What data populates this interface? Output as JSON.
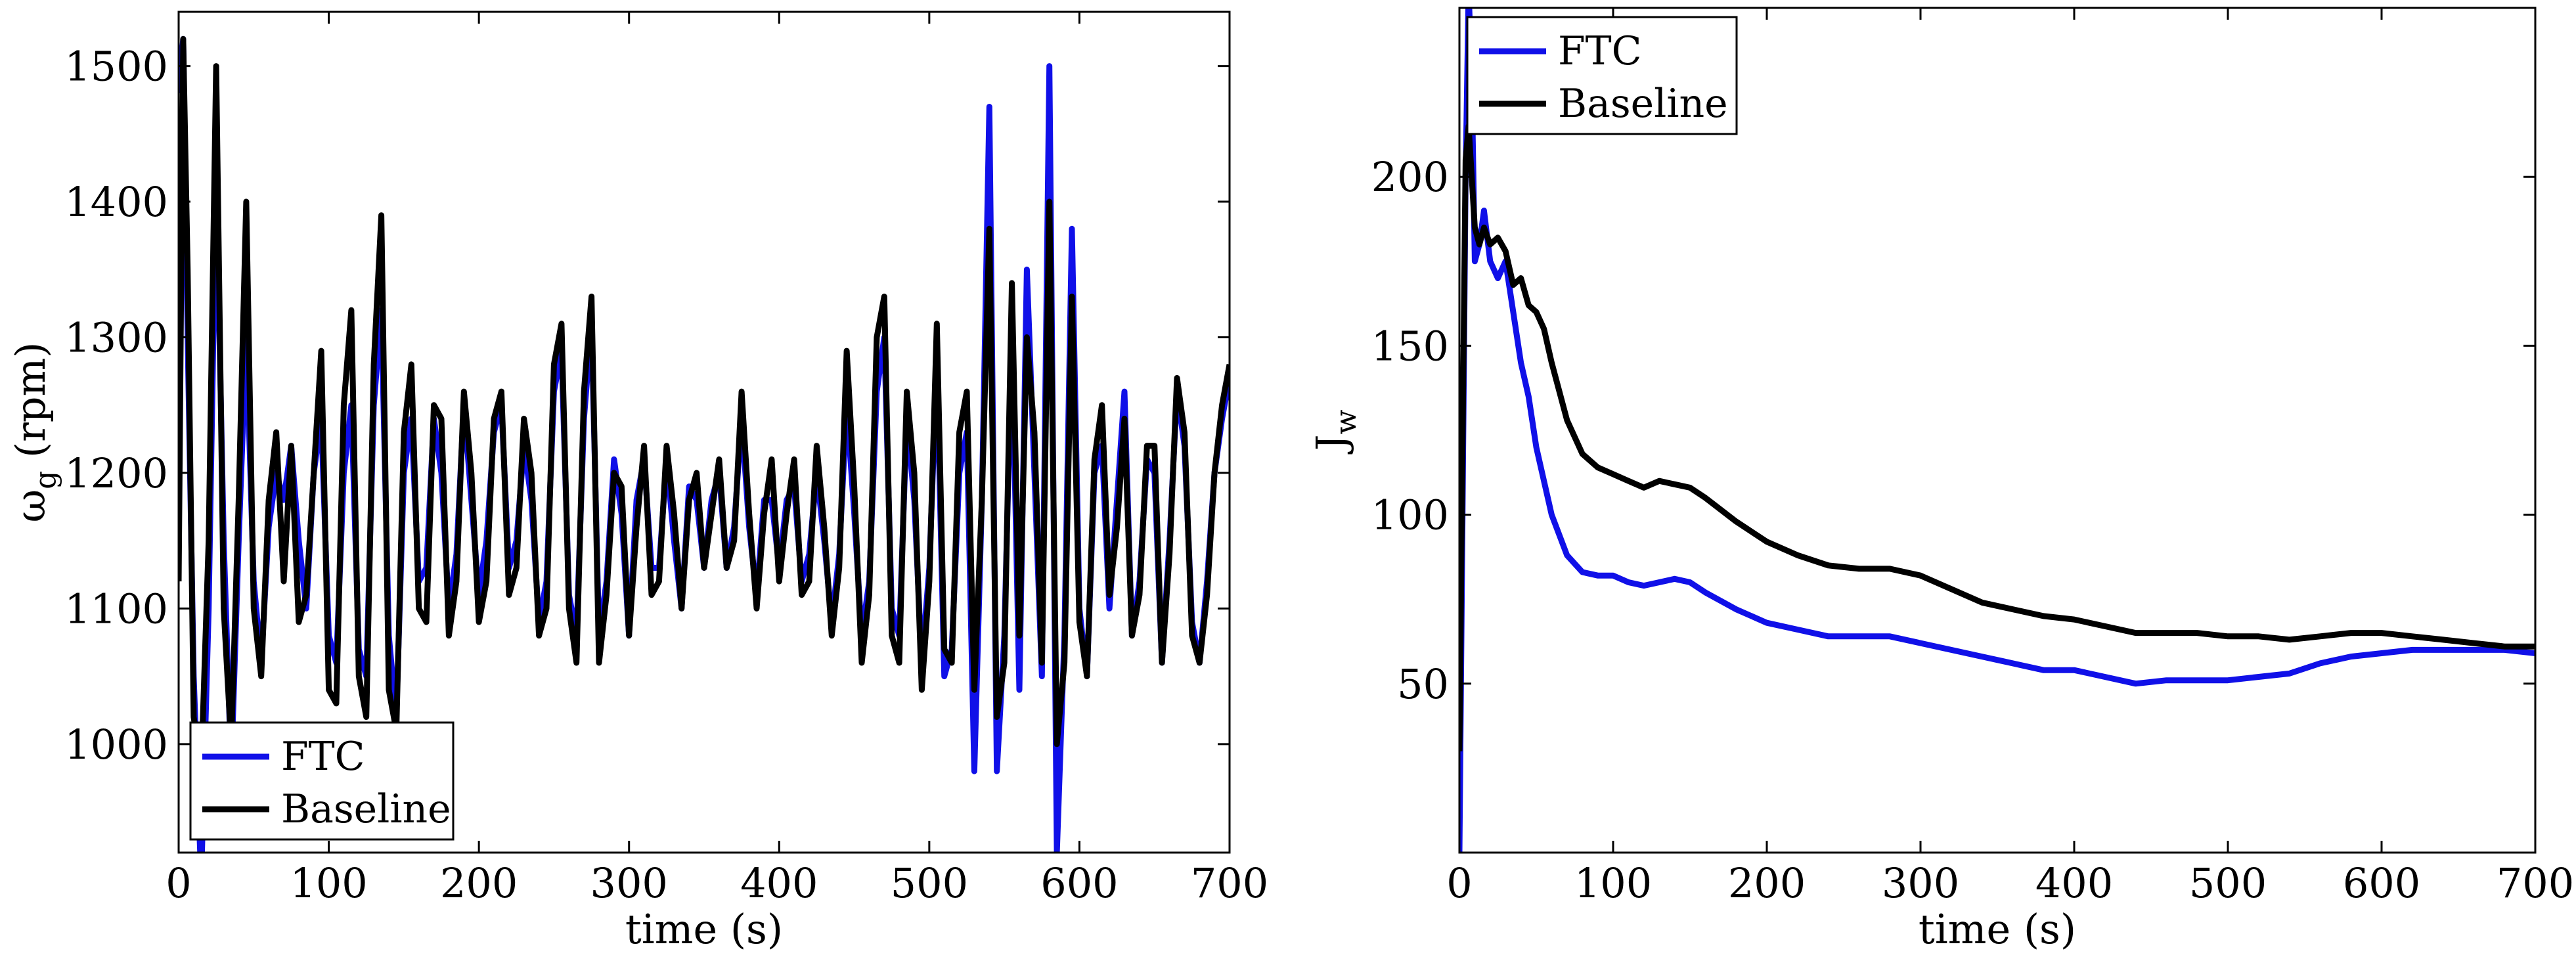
{
  "chart_data": [
    {
      "type": "line",
      "xlabel": "time (s)",
      "ylabel": "ω",
      "ylabel_sub": "g",
      "ylabel_unit": " (rpm)",
      "xlim": [
        0,
        700
      ],
      "ylim": [
        920,
        1540
      ],
      "xticks": [
        0,
        100,
        200,
        300,
        400,
        500,
        600,
        700
      ],
      "yticks": [
        1000,
        1100,
        1200,
        1300,
        1400,
        1500
      ],
      "legend_position": "bottom-left",
      "grid": false,
      "series": [
        {
          "name": "FTC",
          "color": "#1010e8",
          "x": [
            0,
            3,
            6,
            10,
            15,
            20,
            25,
            30,
            35,
            40,
            45,
            50,
            55,
            60,
            65,
            70,
            75,
            80,
            85,
            90,
            95,
            100,
            105,
            110,
            115,
            120,
            125,
            130,
            135,
            140,
            145,
            150,
            155,
            160,
            165,
            170,
            175,
            180,
            185,
            190,
            195,
            200,
            205,
            210,
            215,
            220,
            225,
            230,
            235,
            240,
            245,
            250,
            255,
            260,
            265,
            270,
            275,
            280,
            285,
            290,
            295,
            300,
            305,
            310,
            315,
            320,
            325,
            330,
            335,
            340,
            345,
            350,
            355,
            360,
            365,
            370,
            375,
            380,
            385,
            390,
            395,
            400,
            405,
            410,
            415,
            420,
            425,
            430,
            435,
            440,
            445,
            450,
            455,
            460,
            465,
            470,
            475,
            480,
            485,
            490,
            495,
            500,
            505,
            510,
            515,
            520,
            525,
            530,
            535,
            540,
            545,
            550,
            555,
            560,
            565,
            570,
            575,
            580,
            585,
            590,
            595,
            600,
            605,
            610,
            615,
            620,
            625,
            630,
            635,
            640,
            645,
            650,
            655,
            660,
            665,
            670,
            675,
            680,
            685,
            690,
            695,
            700
          ],
          "y": [
            1480,
            1520,
            1300,
            1050,
            900,
            1100,
            1420,
            1150,
            980,
            1150,
            1300,
            1120,
            1060,
            1160,
            1200,
            1180,
            1220,
            1150,
            1100,
            1200,
            1240,
            1080,
            1060,
            1200,
            1250,
            1070,
            1050,
            1250,
            1320,
            1080,
            1020,
            1200,
            1240,
            1120,
            1130,
            1240,
            1200,
            1100,
            1140,
            1250,
            1180,
            1110,
            1150,
            1230,
            1250,
            1130,
            1150,
            1220,
            1180,
            1090,
            1120,
            1260,
            1290,
            1110,
            1080,
            1240,
            1310,
            1080,
            1120,
            1210,
            1170,
            1080,
            1180,
            1210,
            1130,
            1130,
            1210,
            1150,
            1100,
            1190,
            1180,
            1130,
            1180,
            1200,
            1130,
            1160,
            1240,
            1160,
            1110,
            1180,
            1180,
            1130,
            1180,
            1190,
            1120,
            1140,
            1200,
            1150,
            1090,
            1140,
            1250,
            1170,
            1080,
            1120,
            1260,
            1300,
            1100,
            1080,
            1240,
            1180,
            1060,
            1130,
            1280,
            1050,
            1070,
            1200,
            1230,
            980,
            1180,
            1470,
            980,
            1080,
            1300,
            1040,
            1350,
            1200,
            1050,
            1500,
            920,
            1080,
            1380,
            1100,
            1050,
            1200,
            1220,
            1100,
            1180,
            1260,
            1080,
            1120,
            1210,
            1200,
            1060,
            1150,
            1260,
            1220,
            1090,
            1060,
            1120,
            1200,
            1240,
            1270
          ]
        },
        {
          "name": "Baseline",
          "color": "#000000",
          "x": [
            0,
            3,
            6,
            10,
            15,
            20,
            25,
            30,
            35,
            40,
            45,
            50,
            55,
            60,
            65,
            70,
            75,
            80,
            85,
            90,
            95,
            100,
            105,
            110,
            115,
            120,
            125,
            130,
            135,
            140,
            145,
            150,
            155,
            160,
            165,
            170,
            175,
            180,
            185,
            190,
            195,
            200,
            205,
            210,
            215,
            220,
            225,
            230,
            235,
            240,
            245,
            250,
            255,
            260,
            265,
            270,
            275,
            280,
            285,
            290,
            295,
            300,
            305,
            310,
            315,
            320,
            325,
            330,
            335,
            340,
            345,
            350,
            355,
            360,
            365,
            370,
            375,
            380,
            385,
            390,
            395,
            400,
            405,
            410,
            415,
            420,
            425,
            430,
            435,
            440,
            445,
            450,
            455,
            460,
            465,
            470,
            475,
            480,
            485,
            490,
            495,
            500,
            505,
            510,
            515,
            520,
            525,
            530,
            535,
            540,
            545,
            550,
            555,
            560,
            565,
            570,
            575,
            580,
            585,
            590,
            595,
            600,
            605,
            610,
            615,
            620,
            625,
            630,
            635,
            640,
            645,
            650,
            655,
            660,
            665,
            670,
            675,
            680,
            685,
            690,
            695,
            700
          ],
          "y": [
            1120,
            1520,
            1350,
            1020,
            980,
            1150,
            1500,
            1100,
            1000,
            1180,
            1400,
            1100,
            1050,
            1180,
            1230,
            1120,
            1220,
            1090,
            1110,
            1200,
            1290,
            1040,
            1030,
            1250,
            1320,
            1050,
            1020,
            1280,
            1390,
            1040,
            1010,
            1230,
            1280,
            1100,
            1090,
            1250,
            1240,
            1080,
            1120,
            1260,
            1200,
            1090,
            1120,
            1240,
            1260,
            1110,
            1130,
            1240,
            1200,
            1080,
            1100,
            1280,
            1310,
            1100,
            1060,
            1260,
            1330,
            1060,
            1110,
            1200,
            1190,
            1080,
            1160,
            1220,
            1110,
            1120,
            1220,
            1170,
            1100,
            1180,
            1200,
            1130,
            1170,
            1210,
            1130,
            1150,
            1260,
            1170,
            1100,
            1170,
            1210,
            1120,
            1170,
            1210,
            1110,
            1120,
            1220,
            1160,
            1080,
            1130,
            1290,
            1190,
            1060,
            1110,
            1300,
            1330,
            1080,
            1060,
            1260,
            1200,
            1040,
            1120,
            1310,
            1070,
            1060,
            1230,
            1260,
            1040,
            1180,
            1380,
            1020,
            1060,
            1340,
            1080,
            1300,
            1230,
            1060,
            1400,
            1000,
            1060,
            1330,
            1090,
            1050,
            1210,
            1250,
            1110,
            1160,
            1240,
            1080,
            1110,
            1220,
            1220,
            1060,
            1140,
            1270,
            1230,
            1080,
            1060,
            1110,
            1200,
            1250,
            1280
          ]
        }
      ]
    },
    {
      "type": "line",
      "xlabel": "time (s)",
      "ylabel": "J",
      "ylabel_sub": "w",
      "ylabel_unit": "",
      "xlim": [
        0,
        700
      ],
      "ylim": [
        0,
        250
      ],
      "xticks": [
        0,
        100,
        200,
        300,
        400,
        500,
        600,
        700
      ],
      "yticks": [
        50,
        100,
        150,
        200
      ],
      "legend_position": "top-left",
      "grid": false,
      "series": [
        {
          "name": "FTC",
          "color": "#1010e8",
          "x": [
            0,
            2,
            4,
            6,
            8,
            10,
            13,
            16,
            20,
            25,
            30,
            35,
            40,
            45,
            50,
            55,
            60,
            70,
            80,
            90,
            100,
            110,
            120,
            130,
            140,
            150,
            160,
            180,
            200,
            220,
            240,
            260,
            280,
            300,
            320,
            340,
            360,
            380,
            400,
            420,
            440,
            460,
            480,
            500,
            520,
            540,
            560,
            580,
            600,
            620,
            640,
            660,
            680,
            700
          ],
          "y": [
            0,
            100,
            200,
            255,
            230,
            175,
            180,
            190,
            175,
            170,
            175,
            160,
            145,
            135,
            120,
            110,
            100,
            88,
            83,
            82,
            82,
            80,
            79,
            80,
            81,
            80,
            77,
            72,
            68,
            66,
            64,
            64,
            64,
            62,
            60,
            58,
            56,
            54,
            54,
            52,
            50,
            51,
            51,
            51,
            52,
            53,
            56,
            58,
            59,
            60,
            60,
            60,
            60,
            59
          ]
        },
        {
          "name": "Baseline",
          "color": "#000000",
          "x": [
            0,
            2,
            4,
            6,
            8,
            10,
            13,
            16,
            20,
            25,
            30,
            35,
            40,
            45,
            50,
            55,
            60,
            70,
            80,
            90,
            100,
            110,
            120,
            130,
            140,
            150,
            160,
            180,
            200,
            220,
            240,
            260,
            280,
            300,
            320,
            340,
            360,
            380,
            400,
            420,
            440,
            460,
            480,
            500,
            520,
            540,
            560,
            580,
            600,
            620,
            640,
            660,
            680,
            700
          ],
          "y": [
            30,
            120,
            205,
            215,
            200,
            185,
            180,
            185,
            180,
            182,
            178,
            168,
            170,
            162,
            160,
            155,
            145,
            128,
            118,
            114,
            112,
            110,
            108,
            110,
            109,
            108,
            105,
            98,
            92,
            88,
            85,
            84,
            84,
            82,
            78,
            74,
            72,
            70,
            69,
            67,
            65,
            65,
            65,
            64,
            64,
            63,
            64,
            65,
            65,
            64,
            63,
            62,
            61,
            61
          ]
        }
      ]
    }
  ]
}
